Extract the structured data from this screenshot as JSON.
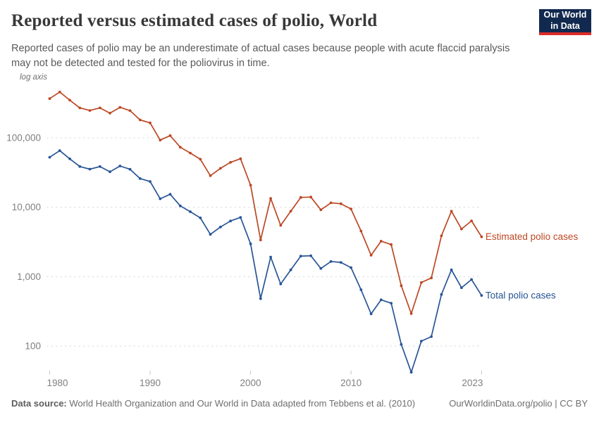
{
  "header": {
    "title": "Reported versus estimated cases of polio, World",
    "subtitle_lines": [
      "Reported cases of polio may be an underestimate of actual cases because people with acute flaccid paralysis",
      "may not be detected and tested for the poliovirus in time."
    ],
    "logo": {
      "line1": "Our World",
      "line2": "in Data"
    }
  },
  "chart_data": {
    "type": "line",
    "title": "Reported versus estimated cases of polio, World",
    "yscale": "log",
    "log_axis_note": "log axis",
    "grid": true,
    "legend_position": "end-of-line",
    "yticks": [
      100000,
      10000,
      1000,
      100
    ],
    "ytick_labels": [
      "100,000",
      "10,000",
      "1,000",
      "100"
    ],
    "xticks": [
      1980,
      1990,
      2000,
      2010,
      2023
    ],
    "xlim": [
      1980,
      2023
    ],
    "ylim": [
      40,
      600000
    ],
    "x": [
      1980,
      1981,
      1982,
      1983,
      1984,
      1985,
      1986,
      1987,
      1988,
      1989,
      1990,
      1991,
      1992,
      1993,
      1994,
      1995,
      1996,
      1997,
      1998,
      1999,
      2000,
      2001,
      2002,
      2003,
      2004,
      2005,
      2006,
      2007,
      2008,
      2009,
      2010,
      2011,
      2012,
      2013,
      2014,
      2015,
      2016,
      2017,
      2018,
      2019,
      2020,
      2021,
      2022,
      2023
    ],
    "series": [
      {
        "name": "Estimated polio cases",
        "color": "#bc4824",
        "values": [
          367864,
          457653,
          349006,
          270277,
          247653,
          270459,
          226933,
          275527,
          246757,
          181209,
          164388,
          92862,
          107842,
          73409,
          60445,
          49245,
          28518,
          36302,
          44443,
          49987,
          20797,
          3381,
          13426,
          5488,
          8785,
          13853,
          14014,
          9205,
          11585,
          11228,
          9464,
          4550,
          2037,
          3248,
          2905,
          742,
          294,
          826,
          959,
          3878,
          8771,
          4858,
          6377,
          3752
        ]
      },
      {
        "name": "Total polio cases",
        "color": "#285596",
        "values": [
          52552,
          65379,
          49858,
          38611,
          35379,
          38637,
          32419,
          39361,
          35251,
          25887,
          23484,
          13266,
          15406,
          10487,
          8635,
          7035,
          4074,
          5186,
          6349,
          7141,
          2971,
          483,
          1918,
          784,
          1255,
          1979,
          2002,
          1315,
          1655,
          1604,
          1352,
          650,
          291,
          464,
          415,
          106,
          42,
          118,
          137,
          554,
          1253,
          694,
          911,
          536
        ]
      }
    ]
  },
  "footer": {
    "source_label": "Data source:",
    "source_text": " World Health Organization and Our World in Data adapted from Tebbens et al. (2010)",
    "license_text": "OurWorldinData.org/polio | CC BY"
  }
}
